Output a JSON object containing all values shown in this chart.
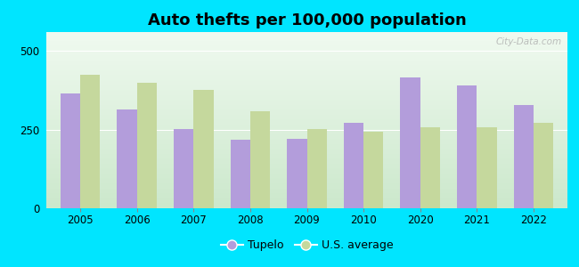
{
  "title": "Auto thefts per 100,000 population",
  "years": [
    2005,
    2006,
    2007,
    2008,
    2009,
    2010,
    2020,
    2021,
    2022
  ],
  "tupelo": [
    365,
    315,
    252,
    218,
    222,
    272,
    415,
    390,
    328
  ],
  "us_avg": [
    425,
    398,
    375,
    308,
    252,
    242,
    257,
    258,
    272
  ],
  "tupelo_color": "#b39ddb",
  "us_avg_color": "#c5d89d",
  "background_outer": "#00e5ff",
  "ylim": [
    0,
    560
  ],
  "yticks": [
    0,
    250,
    500
  ],
  "bar_width": 0.35,
  "title_fontsize": 13,
  "watermark": "City-Data.com"
}
